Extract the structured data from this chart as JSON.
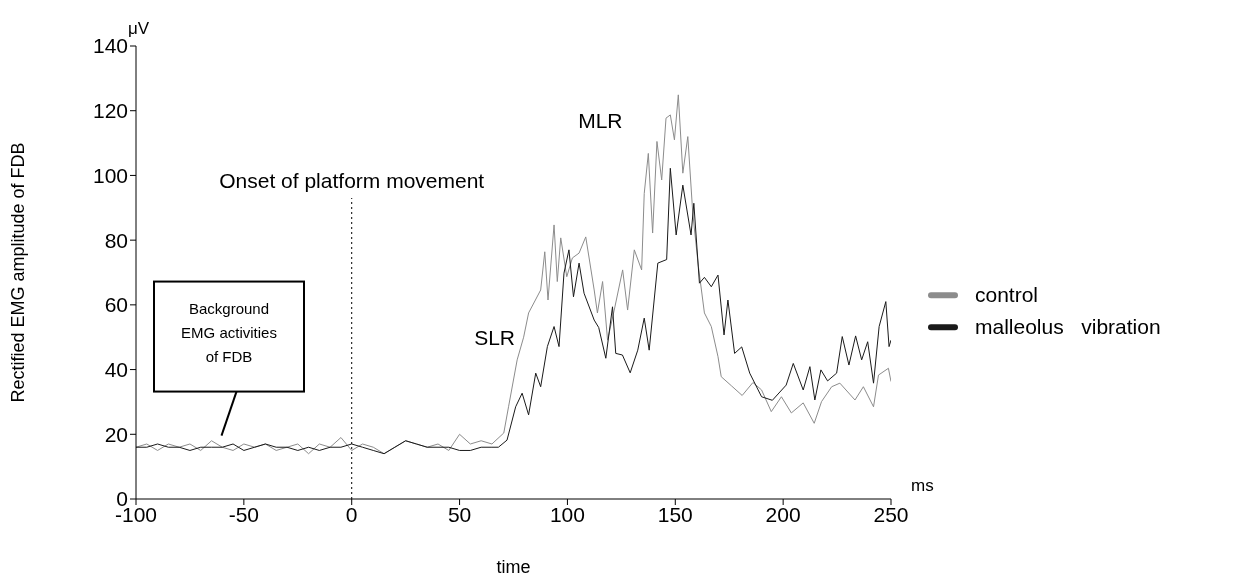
{
  "chart_data": {
    "type": "line",
    "xlabel": "time",
    "ylabel": "Rectified EMG amplitude of FDB",
    "xlim": [
      -100,
      250
    ],
    "xticks": [
      -100,
      -50,
      0,
      50,
      100,
      150,
      200,
      250
    ],
    "ylim": [
      0,
      140
    ],
    "yticks": [
      0,
      20,
      40,
      60,
      80,
      100,
      120,
      140
    ],
    "legend": "right",
    "marker": "none",
    "line_style": "solid",
    "ref_lines": [
      {
        "axis": "x",
        "value": 0,
        "label": "Onset of platform movement",
        "line_style": "dotted",
        "color": "#000000"
      }
    ],
    "annotations": [
      "μV",
      "ms",
      "SLR",
      "MLR",
      "Background EMG activities of FDB"
    ],
    "series": [
      {
        "name": "control",
        "color": "#8c8c8c",
        "x": [
          -100,
          -95,
          -90,
          -85,
          -80,
          -75,
          -70,
          -65,
          -60,
          -55,
          -50,
          -45,
          -40,
          -35,
          -30,
          -25,
          -20,
          -15,
          -10,
          -5,
          0,
          5,
          10,
          15,
          20,
          25,
          30,
          35,
          40,
          45,
          50,
          55,
          60,
          65,
          70.5,
          72.7,
          76.7,
          79.7,
          82,
          87.6,
          89.5,
          91,
          93.8,
          95.3,
          96.9,
          99.7,
          102.3,
          105.4,
          108.5,
          112.4,
          113.9,
          116.3,
          118.6,
          121.7,
          125.6,
          127.9,
          131,
          134.4,
          135.6,
          137.5,
          139.5,
          141.5,
          143.7,
          145.7,
          147.7,
          149.6,
          151.4,
          153.5,
          155.8,
          158.1,
          160.7,
          163.5,
          166.7,
          169.8,
          171.3,
          176,
          181,
          186,
          190,
          194.5,
          199.2,
          203.8,
          209.3,
          214.4,
          217.8,
          222.5,
          226.3,
          233.3,
          237.2,
          241.9,
          244.2,
          248.8,
          250
        ],
        "values": [
          16,
          17,
          15,
          17,
          16,
          17,
          15,
          18,
          16,
          15,
          17,
          16,
          17,
          15,
          16,
          17,
          14,
          17,
          16,
          19,
          15,
          17,
          16,
          14,
          16,
          18,
          17,
          16,
          17,
          15,
          20,
          17,
          18,
          17,
          20.4,
          28.5,
          43,
          50,
          57.5,
          64.6,
          76.4,
          61.5,
          84.7,
          67.2,
          80.7,
          68.7,
          74.5,
          76,
          81,
          64.6,
          57.5,
          67.2,
          49.1,
          58.4,
          70.8,
          58.4,
          77,
          70.8,
          94.4,
          106.8,
          82.2,
          110.5,
          98.6,
          117.7,
          118.7,
          111,
          124.9,
          100.7,
          112,
          88.4,
          71.9,
          57.5,
          53.3,
          44,
          37.8,
          35,
          32,
          36,
          33.7,
          27,
          31.6,
          26.6,
          29.7,
          23.4,
          30.1,
          34.7,
          35.8,
          30.6,
          34.7,
          28.5,
          38.3,
          40.4,
          36.3
        ]
      },
      {
        "name": "malleolus   vibration",
        "color": "#1a1a1a",
        "x": [
          -100,
          -95,
          -90,
          -85,
          -80,
          -75,
          -70,
          -65,
          -60,
          -55,
          -50,
          -45,
          -40,
          -35,
          -30,
          -25,
          -20,
          -15,
          -10,
          -5,
          0,
          5,
          10,
          15,
          20,
          25,
          30,
          35,
          40,
          45,
          50,
          55,
          60,
          65,
          68,
          72,
          76,
          79,
          82,
          85.3,
          87.6,
          90.7,
          93.8,
          96.1,
          98.4,
          100.7,
          102.8,
          105.4,
          107.7,
          112.4,
          114.5,
          117.8,
          120.9,
          122.4,
          125.5,
          129.1,
          132.6,
          135.6,
          137.9,
          141.9,
          146,
          147.7,
          150.4,
          153.5,
          157.3,
          158.6,
          161.2,
          163.5,
          166.7,
          169.8,
          172.6,
          174.4,
          177.5,
          180.8,
          184.5,
          190,
          195,
          201.4,
          204.7,
          209.3,
          212.4,
          214.7,
          217.5,
          220.6,
          224.8,
          227.4,
          230.5,
          233.6,
          236.4,
          239.2,
          241.9,
          244.5,
          247.6,
          249.1,
          250
        ],
        "values": [
          16,
          16,
          17,
          16,
          16,
          15,
          16,
          16,
          16,
          17,
          15,
          16,
          17,
          16,
          16,
          15,
          16,
          15,
          16,
          16,
          17,
          16,
          15,
          14,
          16,
          18,
          17,
          16,
          16,
          16,
          15,
          15,
          16,
          16,
          16,
          18.2,
          28.5,
          32.7,
          26,
          38.9,
          34.7,
          47.1,
          53.3,
          47.1,
          69.8,
          77,
          62.5,
          72.9,
          63.6,
          55.3,
          53,
          43.5,
          59.4,
          45,
          44.5,
          39,
          46,
          55.9,
          46,
          72.9,
          74,
          102.2,
          81.6,
          97,
          81.6,
          91.4,
          66.7,
          68.5,
          65.6,
          69.2,
          50.7,
          61.5,
          45,
          47,
          38.9,
          31.6,
          30.5,
          35.2,
          41.9,
          33.7,
          40.9,
          30.6,
          39.9,
          36.5,
          38.9,
          50.2,
          41.4,
          50.4,
          43,
          48.6,
          35.8,
          53.3,
          61,
          47.1,
          49.1
        ]
      }
    ]
  }
}
